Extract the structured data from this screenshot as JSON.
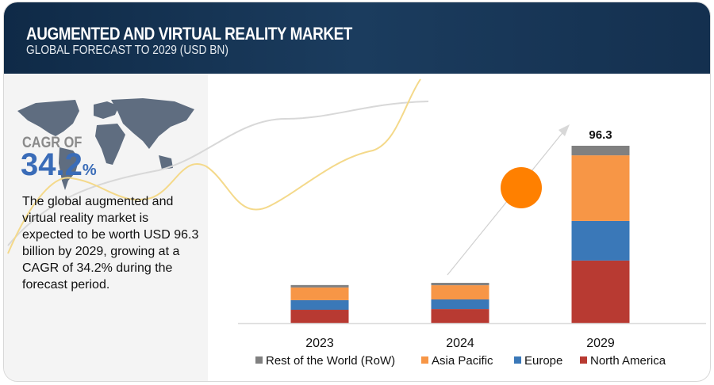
{
  "header": {
    "title": "AUGMENTED AND VIRTUAL REALITY MARKET",
    "subtitle": "GLOBAL FORECAST TO 2029 (USD BN)"
  },
  "left_panel": {
    "map_icon": "world-map",
    "cagr_label": "CAGR OF",
    "cagr_value": "34.2",
    "cagr_unit": "%",
    "description": "The global augmented and virtual reality market is expected to be worth USD 96.3 billion by 2029, growing at a CAGR of 34.2% during the forecast period."
  },
  "chart_data": {
    "type": "bar",
    "stacked": true,
    "categories": [
      "2023",
      "2024",
      "2029"
    ],
    "series": [
      {
        "name": "North America",
        "color": "#b83a32",
        "values": [
          7.3,
          7.7,
          34.0
        ]
      },
      {
        "name": "Europe",
        "color": "#3a78b8",
        "values": [
          5.2,
          5.2,
          21.5
        ]
      },
      {
        "name": "Asia Pacific",
        "color": "#f79646",
        "values": [
          6.9,
          7.7,
          35.6
        ]
      },
      {
        "name": "Rest of the World (RoW)",
        "color": "#808080",
        "values": [
          1.3,
          1.3,
          5.2
        ]
      }
    ],
    "data_labels": {
      "2029": "96.3"
    },
    "legend_order": [
      "Rest of the World (RoW)",
      "Asia Pacific",
      "Europe",
      "North America"
    ],
    "legend_placement": "bottom",
    "grid": false,
    "ylim": [
      0,
      100
    ],
    "accent_color": "#ff8000"
  }
}
